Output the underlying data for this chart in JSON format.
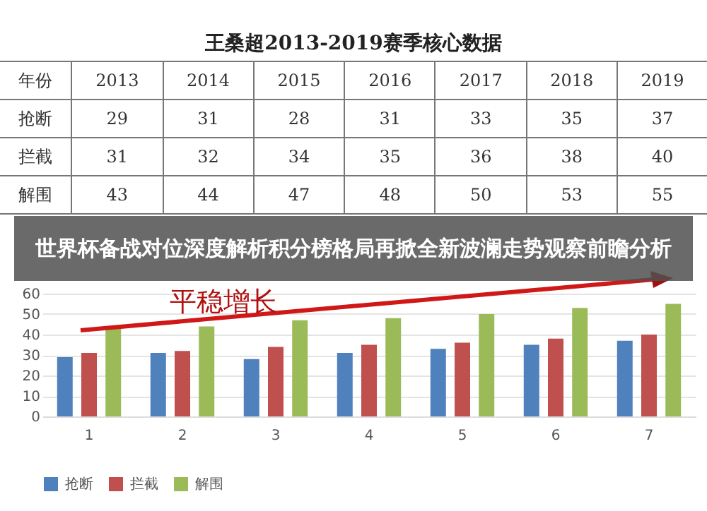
{
  "chart_data": {
    "type": "bar",
    "title": "王桑超2013-2019赛季核心数据",
    "subtitle": "世界杯备战对位深度解析积分榜格局再掀全新波澜走势观察前瞻分析",
    "annotations": [
      "平稳增长",
      "年份",
      "2013",
      "2014",
      "2015",
      "2016",
      "2017",
      "2018",
      "2019"
    ],
    "categories": [
      "1",
      "2",
      "3",
      "4",
      "5",
      "6",
      "7"
    ],
    "series": [
      {
        "name": "抢断",
        "color": "#4f81bd",
        "values": [
          29,
          31,
          28,
          31,
          33,
          35,
          37
        ]
      },
      {
        "name": "拦截",
        "color": "#c0504d",
        "values": [
          31,
          32,
          34,
          35,
          36,
          38,
          40
        ]
      },
      {
        "name": "解围",
        "color": "#9bbb59",
        "values": [
          43,
          44,
          47,
          48,
          50,
          53,
          55
        ]
      }
    ],
    "ylim": [
      0,
      60
    ],
    "yticks": [
      0,
      10,
      20,
      30,
      40,
      50,
      60
    ],
    "grid": "y",
    "legend": "bottom",
    "data_labels": true
  }
}
